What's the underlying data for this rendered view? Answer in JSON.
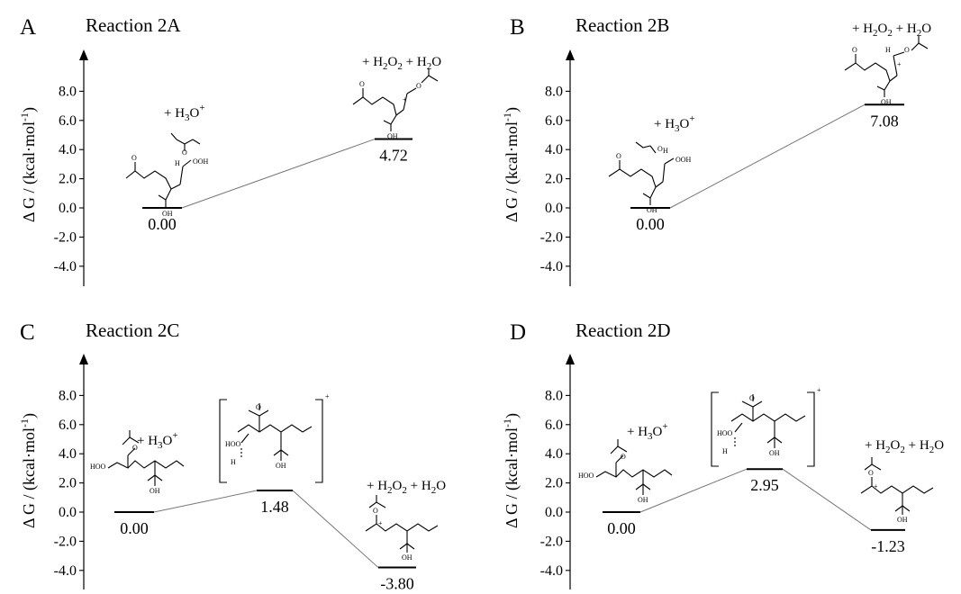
{
  "chart_data": [
    {
      "type": "line",
      "panel": "A",
      "title": "Reaction 2A",
      "ylabel": "Δ G / (kcal·mol-1)",
      "ylim": [
        -4.0,
        8.0
      ],
      "yticks": [
        "8.0",
        "6.0",
        "4.0",
        "2.0",
        "0.0",
        "-2.0",
        "-4.0"
      ],
      "series": [
        {
          "values": [
            0.0,
            4.72
          ]
        }
      ],
      "labels": [
        "0.00",
        "4.72"
      ],
      "annotations": [
        "+ H3O+",
        "+ H2O2 + H2O"
      ]
    },
    {
      "type": "line",
      "panel": "B",
      "title": "Reaction 2B",
      "ylabel": "Δ G / (kcal·mol-1)",
      "ylim": [
        -4.0,
        8.0
      ],
      "yticks": [
        "8.0",
        "6.0",
        "4.0",
        "2.0",
        "0.0",
        "-2.0",
        "-4.0"
      ],
      "series": [
        {
          "values": [
            0.0,
            7.08
          ]
        }
      ],
      "labels": [
        "0.00",
        "7.08"
      ],
      "annotations": [
        "+ H3O+",
        "+ H2O2 + H2O"
      ]
    },
    {
      "type": "line",
      "panel": "C",
      "title": "Reaction 2C",
      "ylabel": "Δ G / (kcal·mol-1)",
      "ylim": [
        -4.0,
        8.0
      ],
      "yticks": [
        "8.0",
        "6.0",
        "4.0",
        "2.0",
        "0.0",
        "-2.0",
        "-4.0"
      ],
      "series": [
        {
          "values": [
            0.0,
            1.48,
            -3.8
          ]
        }
      ],
      "labels": [
        "0.00",
        "1.48",
        "-3.80"
      ],
      "annotations": [
        "+ H3O+",
        "+ H2O2 + H2O"
      ]
    },
    {
      "type": "line",
      "panel": "D",
      "title": "Reaction 2D",
      "ylabel": "Δ G / (kcal·mol-1)",
      "ylim": [
        -4.0,
        8.0
      ],
      "yticks": [
        "8.0",
        "6.0",
        "4.0",
        "2.0",
        "0.0",
        "-2.0",
        "-4.0"
      ],
      "series": [
        {
          "values": [
            0.0,
            2.95,
            -1.23
          ]
        }
      ],
      "labels": [
        "0.00",
        "2.95",
        "-1.23"
      ],
      "annotations": [
        "+ H3O+",
        "+ H2O2 + H2O"
      ]
    }
  ],
  "structure_atoms": {
    "oh": "OH",
    "h": "H",
    "o": "O",
    "ooh": "OOH",
    "hoo": "HOO",
    "plus": "+"
  },
  "colors": {
    "ink": "#000000",
    "connector": "#777777"
  }
}
